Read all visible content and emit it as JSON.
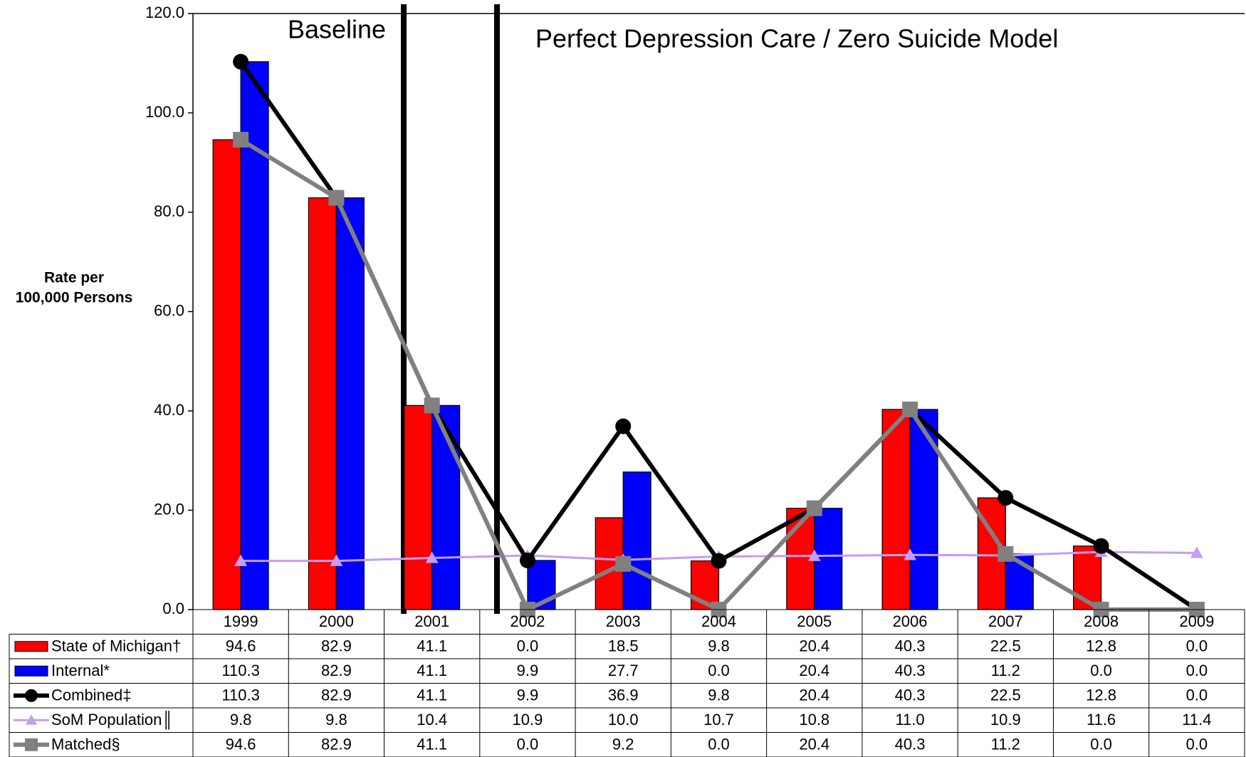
{
  "chart_data": {
    "type": "bar",
    "y_label": [
      "Rate per",
      "100,000 Persons"
    ],
    "annotations": [
      "Baseline",
      "Perfect Depression Care / Zero Suicide Model"
    ],
    "categories": [
      "1999",
      "2000",
      "2001",
      "2002",
      "2003",
      "2004",
      "2005",
      "2006",
      "2007",
      "2008",
      "2009"
    ],
    "ylim": [
      0,
      120
    ],
    "yticks": [
      {
        "value": 0,
        "label": "0.0"
      },
      {
        "value": 20,
        "label": "20.0"
      },
      {
        "value": 40,
        "label": "40.0"
      },
      {
        "value": 60,
        "label": "60.0"
      },
      {
        "value": 80,
        "label": "80.0"
      },
      {
        "value": 100,
        "label": "100.0"
      },
      {
        "value": 120,
        "label": "120.0"
      }
    ],
    "series": [
      {
        "name": "State of Michigan†",
        "type": "bar",
        "color": "#ff0000",
        "values": [
          94.6,
          82.9,
          41.1,
          0,
          18.5,
          9.8,
          20.4,
          40.3,
          22.5,
          12.8,
          0
        ],
        "value_labels": [
          "94.6",
          "82.9",
          "41.1",
          "0.0",
          "18.5",
          "9.8",
          "20.4",
          "40.3",
          "22.5",
          "12.8",
          "0.0"
        ]
      },
      {
        "name": "Internal*",
        "type": "bar",
        "color": "#0000ff",
        "values": [
          110.3,
          82.9,
          41.1,
          9.9,
          27.7,
          0,
          20.4,
          40.3,
          11.2,
          0,
          0
        ],
        "value_labels": [
          "110.3",
          "82.9",
          "41.1",
          "9.9",
          "27.7",
          "0.0",
          "20.4",
          "40.3",
          "11.2",
          "0.0",
          "0.0"
        ]
      },
      {
        "name": "Combined‡",
        "type": "line",
        "marker": "circle",
        "color": "#000000",
        "values": [
          110.3,
          82.9,
          41.1,
          9.9,
          36.9,
          9.8,
          20.4,
          40.3,
          22.5,
          12.8,
          0
        ],
        "value_labels": [
          "110.3",
          "82.9",
          "41.1",
          "9.9",
          "36.9",
          "9.8",
          "20.4",
          "40.3",
          "22.5",
          "12.8",
          "0.0"
        ]
      },
      {
        "name": "SoM Population║",
        "type": "line",
        "marker": "triangle",
        "color": "#c39ef2",
        "values": [
          9.8,
          9.8,
          10.4,
          10.9,
          10,
          10.7,
          10.8,
          11,
          10.9,
          11.6,
          11.4
        ],
        "value_labels": [
          "9.8",
          "9.8",
          "10.4",
          "10.9",
          "10.0",
          "10.7",
          "10.8",
          "11.0",
          "10.9",
          "11.6",
          "11.4"
        ]
      },
      {
        "name": "Matched§",
        "type": "line",
        "marker": "square",
        "color": "#808080",
        "values": [
          94.6,
          82.9,
          41.1,
          0,
          9.2,
          0,
          20.4,
          40.3,
          11.2,
          0,
          0
        ],
        "value_labels": [
          "94.6",
          "82.9",
          "41.1",
          "0.0",
          "9.2",
          "0.0",
          "20.4",
          "40.3",
          "11.2",
          "0.0",
          "0.0"
        ]
      }
    ]
  }
}
